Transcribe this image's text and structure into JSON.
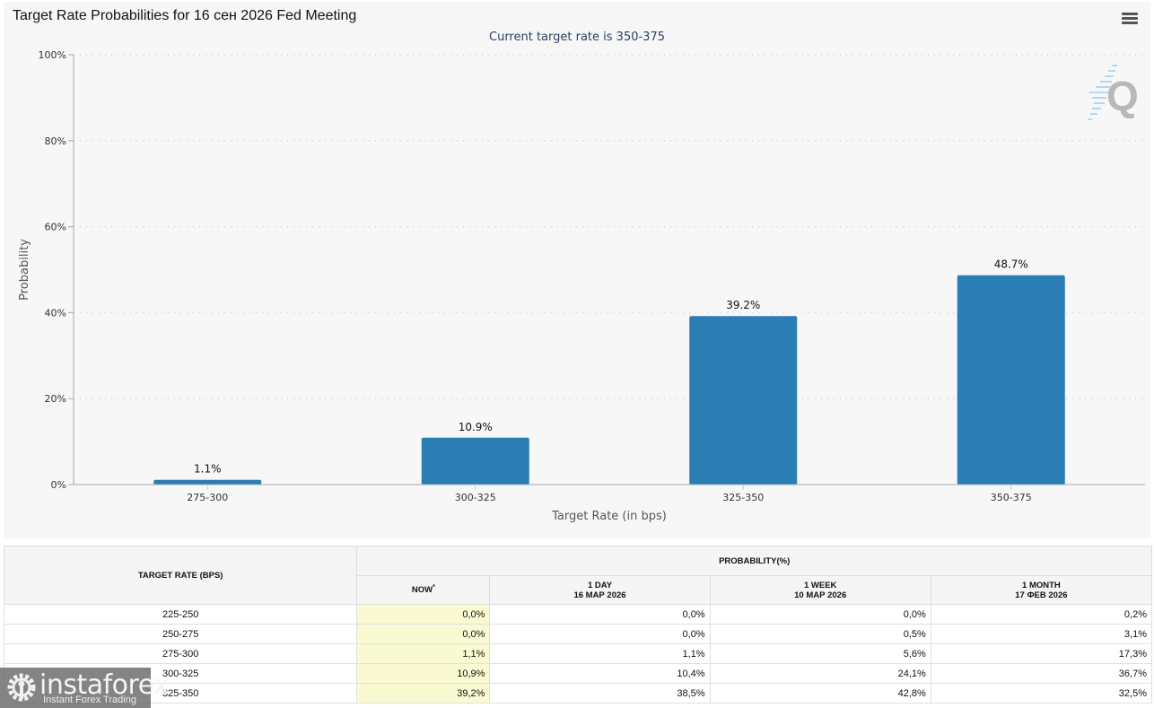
{
  "header": {
    "title": "Target Rate Probabilities for 16 сен 2026 Fed Meeting",
    "subtitle": "Current target rate is 350-375",
    "menu_icon": "hamburger-menu-icon",
    "watermark_icon": "q-logo-icon"
  },
  "chart_data": {
    "type": "bar",
    "title": "Target Rate Probabilities for 16 сен 2026 Fed Meeting",
    "subtitle": "Current target rate is 350-375",
    "categories": [
      "275-300",
      "300-325",
      "325-350",
      "350-375"
    ],
    "values": [
      1.1,
      10.9,
      39.2,
      48.7
    ],
    "data_labels": [
      "1.1%",
      "10.9%",
      "39.2%",
      "48.7%"
    ],
    "xlabel": "Target Rate (in bps)",
    "ylabel": "Probability",
    "ylim": [
      0,
      100
    ],
    "yticks": [
      0,
      20,
      40,
      60,
      80,
      100
    ],
    "ytick_labels": [
      "0%",
      "20%",
      "40%",
      "60%",
      "80%",
      "100%"
    ],
    "grid": true,
    "bar_color": "#2a7db5"
  },
  "table": {
    "rate_header": "TARGET RATE (BPS)",
    "prob_header": "PROBABILITY(%)",
    "columns": [
      {
        "label": "NOW",
        "marker": "*",
        "date": ""
      },
      {
        "label": "1 DAY",
        "date": "16 МАР 2026"
      },
      {
        "label": "1 WEEK",
        "date": "10 МАР 2026"
      },
      {
        "label": "1 MONTH",
        "date": "17 ФЕВ 2026"
      }
    ],
    "rows": [
      {
        "rate": "225-250",
        "now": "0,0%",
        "day": "0,0%",
        "week": "0,0%",
        "month": "0,2%"
      },
      {
        "rate": "250-275",
        "now": "0,0%",
        "day": "0,0%",
        "week": "0,5%",
        "month": "3,1%"
      },
      {
        "rate": "275-300",
        "now": "1,1%",
        "day": "1,1%",
        "week": "5,6%",
        "month": "17,3%"
      },
      {
        "rate": "300-325",
        "now": "10,9%",
        "day": "10,4%",
        "week": "24,1%",
        "month": "36,7%"
      },
      {
        "rate": "325-350",
        "now": "39,2%",
        "day": "38,5%",
        "week": "42,8%",
        "month": "32,5%"
      }
    ]
  },
  "logo": {
    "brand": "instaforex",
    "tagline": "Instant Forex Trading"
  }
}
